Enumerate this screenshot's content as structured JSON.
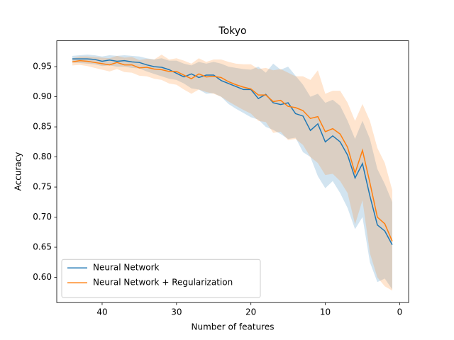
{
  "chart_data": {
    "type": "line",
    "title": "Tokyo",
    "x_label": "Number of features",
    "y_label": "Accuracy",
    "x": [
      44,
      43,
      42,
      41,
      40,
      39,
      38,
      37,
      36,
      35,
      34,
      33,
      32,
      31,
      30,
      29,
      28,
      27,
      26,
      25,
      24,
      23,
      22,
      21,
      20,
      19,
      18,
      17,
      16,
      15,
      14,
      13,
      12,
      11,
      10,
      9,
      8,
      7,
      6,
      5,
      4,
      3,
      2,
      1
    ],
    "xlim": [
      46.1,
      -1.2
    ],
    "xticks": [
      40,
      30,
      20,
      10,
      0
    ],
    "ylim": [
      0.558,
      0.993
    ],
    "yticks": [
      {
        "value": 0.6,
        "label": "0.60"
      },
      0.65,
      {
        "value": 0.7,
        "label": "0.70"
      },
      0.75,
      {
        "value": 0.8,
        "label": "0.80"
      },
      0.85,
      {
        "value": 0.9,
        "label": "0.90"
      },
      0.95
    ],
    "legend": "lower left",
    "series": [
      {
        "name": "Neural Network",
        "color": "#1f77b4",
        "values": [
          0.963,
          0.963,
          0.963,
          0.962,
          0.959,
          0.961,
          0.959,
          0.96,
          0.958,
          0.957,
          0.953,
          0.95,
          0.949,
          0.945,
          0.939,
          0.933,
          0.938,
          0.932,
          0.936,
          0.936,
          0.927,
          0.922,
          0.917,
          0.912,
          0.912,
          0.897,
          0.904,
          0.89,
          0.887,
          0.89,
          0.872,
          0.868,
          0.844,
          0.855,
          0.825,
          0.835,
          0.825,
          0.803,
          0.765,
          0.789,
          0.735,
          0.687,
          0.677,
          0.654
        ],
        "lower": [
          0.957,
          0.956,
          0.955,
          0.954,
          0.951,
          0.952,
          0.95,
          0.95,
          0.948,
          0.947,
          0.942,
          0.938,
          0.934,
          0.93,
          0.928,
          0.922,
          0.914,
          0.912,
          0.905,
          0.906,
          0.9,
          0.888,
          0.88,
          0.873,
          0.866,
          0.862,
          0.85,
          0.845,
          0.838,
          0.83,
          0.832,
          0.808,
          0.8,
          0.768,
          0.748,
          0.76,
          0.74,
          0.715,
          0.68,
          0.7,
          0.625,
          0.592,
          0.598,
          0.58
        ],
        "upper": [
          0.968,
          0.969,
          0.97,
          0.969,
          0.967,
          0.969,
          0.968,
          0.969,
          0.968,
          0.967,
          0.964,
          0.962,
          0.964,
          0.96,
          0.96,
          0.955,
          0.952,
          0.958,
          0.955,
          0.958,
          0.955,
          0.95,
          0.948,
          0.946,
          0.945,
          0.95,
          0.94,
          0.955,
          0.945,
          0.95,
          0.935,
          0.92,
          0.9,
          0.905,
          0.89,
          0.895,
          0.885,
          0.86,
          0.83,
          0.86,
          0.83,
          0.78,
          0.755,
          0.725
        ]
      },
      {
        "name": "Neural Network + Regularization",
        "color": "#ff7f0e",
        "values": [
          0.958,
          0.96,
          0.959,
          0.957,
          0.955,
          0.953,
          0.957,
          0.953,
          0.953,
          0.948,
          0.949,
          0.946,
          0.945,
          0.942,
          0.942,
          0.936,
          0.93,
          0.938,
          0.933,
          0.934,
          0.932,
          0.925,
          0.92,
          0.916,
          0.913,
          0.903,
          0.903,
          0.892,
          0.894,
          0.884,
          0.882,
          0.877,
          0.864,
          0.867,
          0.842,
          0.847,
          0.838,
          0.816,
          0.773,
          0.811,
          0.757,
          0.7,
          0.689,
          0.66
        ],
        "lower": [
          0.952,
          0.953,
          0.951,
          0.948,
          0.945,
          0.942,
          0.946,
          0.941,
          0.94,
          0.935,
          0.934,
          0.93,
          0.928,
          0.922,
          0.92,
          0.912,
          0.905,
          0.912,
          0.908,
          0.905,
          0.9,
          0.892,
          0.885,
          0.878,
          0.872,
          0.86,
          0.858,
          0.84,
          0.842,
          0.828,
          0.83,
          0.82,
          0.8,
          0.79,
          0.77,
          0.772,
          0.76,
          0.74,
          0.688,
          0.728,
          0.64,
          0.6,
          0.585,
          0.578
        ],
        "upper": [
          0.964,
          0.967,
          0.967,
          0.966,
          0.965,
          0.964,
          0.968,
          0.965,
          0.966,
          0.961,
          0.963,
          0.962,
          0.97,
          0.962,
          0.964,
          0.96,
          0.955,
          0.964,
          0.958,
          0.962,
          0.962,
          0.958,
          0.955,
          0.954,
          0.954,
          0.946,
          0.948,
          0.944,
          0.946,
          0.94,
          0.934,
          0.934,
          0.928,
          0.944,
          0.905,
          0.91,
          0.91,
          0.89,
          0.86,
          0.888,
          0.86,
          0.815,
          0.79,
          0.745
        ]
      }
    ]
  }
}
